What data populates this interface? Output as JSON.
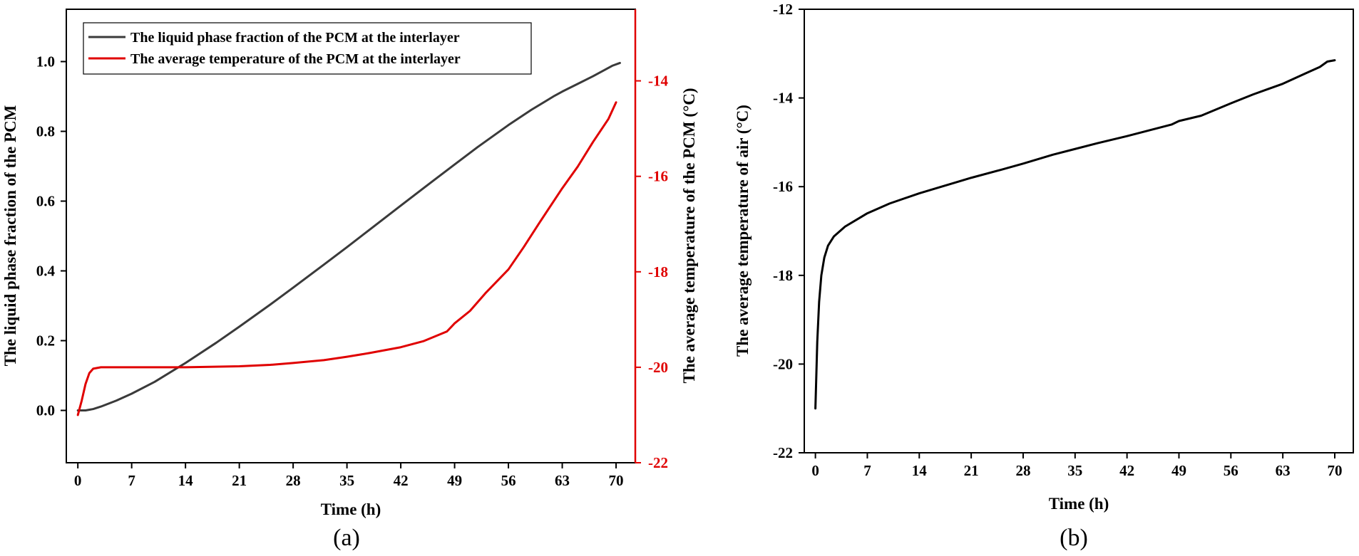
{
  "chart_data": [
    {
      "type": "line",
      "panel_label": "(a)",
      "xlabel": "Time (h)",
      "ylabel": "The liquid phase fraction of the PCM",
      "y2label": "The average temperature of the PCM (°C)",
      "xlim": [
        -1.5,
        72.5
      ],
      "ylim": [
        -0.15,
        1.15
      ],
      "y2lim": [
        -22,
        -12.5
      ],
      "x_ticks": [
        0,
        7,
        14,
        21,
        28,
        35,
        42,
        49,
        56,
        63,
        70
      ],
      "y_ticks": [
        0.0,
        0.2,
        0.4,
        0.6,
        0.8,
        1.0
      ],
      "y_tick_labels": [
        "0.0",
        "0.2",
        "0.4",
        "0.6",
        "0.8",
        "1.0"
      ],
      "y2_ticks": [
        -22,
        -20,
        -18,
        -16,
        -14
      ],
      "legend_position": "top-left",
      "series": [
        {
          "name": "The liquid phase fraction of the PCM at the interlayer",
          "axis": "left",
          "color": "#3a3a3a",
          "points": [
            [
              0,
              0.0
            ],
            [
              1,
              0.0
            ],
            [
              2,
              0.004
            ],
            [
              3,
              0.011
            ],
            [
              5,
              0.028
            ],
            [
              7,
              0.048
            ],
            [
              10,
              0.082
            ],
            [
              14,
              0.136
            ],
            [
              18,
              0.194
            ],
            [
              21,
              0.24
            ],
            [
              25,
              0.303
            ],
            [
              28,
              0.352
            ],
            [
              32,
              0.418
            ],
            [
              35,
              0.468
            ],
            [
              38,
              0.519
            ],
            [
              42,
              0.587
            ],
            [
              45,
              0.638
            ],
            [
              49,
              0.705
            ],
            [
              52,
              0.755
            ],
            [
              56,
              0.818
            ],
            [
              59,
              0.862
            ],
            [
              62,
              0.902
            ],
            [
              63,
              0.914
            ],
            [
              65,
              0.936
            ],
            [
              67,
              0.958
            ],
            [
              68.5,
              0.976
            ],
            [
              69.5,
              0.988
            ],
            [
              70.5,
              0.996
            ]
          ]
        },
        {
          "name": "The average temperature of the PCM at the interlayer",
          "axis": "right",
          "color": "#e00000",
          "points": [
            [
              0,
              -21.0
            ],
            [
              0.5,
              -20.7
            ],
            [
              1,
              -20.35
            ],
            [
              1.5,
              -20.12
            ],
            [
              2,
              -20.03
            ],
            [
              3,
              -20.0
            ],
            [
              7,
              -20.0
            ],
            [
              14,
              -20.0
            ],
            [
              21,
              -19.98
            ],
            [
              25,
              -19.95
            ],
            [
              28,
              -19.91
            ],
            [
              32,
              -19.85
            ],
            [
              35,
              -19.78
            ],
            [
              38,
              -19.7
            ],
            [
              42,
              -19.58
            ],
            [
              45,
              -19.45
            ],
            [
              48,
              -19.25
            ],
            [
              49,
              -19.08
            ],
            [
              51,
              -18.82
            ],
            [
              53,
              -18.45
            ],
            [
              56,
              -17.95
            ],
            [
              58,
              -17.48
            ],
            [
              60,
              -16.98
            ],
            [
              63,
              -16.25
            ],
            [
              65,
              -15.8
            ],
            [
              67,
              -15.28
            ],
            [
              69,
              -14.8
            ],
            [
              70,
              -14.45
            ]
          ]
        }
      ]
    },
    {
      "type": "line",
      "panel_label": "(b)",
      "xlabel": "Time (h)",
      "ylabel": "The average temperature of air (°C)",
      "xlim": [
        -1.5,
        72.5
      ],
      "ylim": [
        -22,
        -12
      ],
      "x_ticks": [
        0,
        7,
        14,
        21,
        28,
        35,
        42,
        49,
        56,
        63,
        70
      ],
      "y_ticks": [
        -22,
        -20,
        -18,
        -16,
        -14,
        -12
      ],
      "series": [
        {
          "name": "",
          "color": "#000000",
          "points": [
            [
              0,
              -21.0
            ],
            [
              0.1,
              -20.4
            ],
            [
              0.25,
              -19.5
            ],
            [
              0.5,
              -18.6
            ],
            [
              0.8,
              -18.0
            ],
            [
              1.2,
              -17.6
            ],
            [
              1.7,
              -17.33
            ],
            [
              2.5,
              -17.12
            ],
            [
              4,
              -16.9
            ],
            [
              6,
              -16.7
            ],
            [
              7,
              -16.6
            ],
            [
              10,
              -16.38
            ],
            [
              14,
              -16.15
            ],
            [
              17,
              -16.0
            ],
            [
              21,
              -15.8
            ],
            [
              25,
              -15.62
            ],
            [
              28,
              -15.48
            ],
            [
              32,
              -15.28
            ],
            [
              35,
              -15.15
            ],
            [
              38,
              -15.02
            ],
            [
              42,
              -14.86
            ],
            [
              45,
              -14.73
            ],
            [
              48,
              -14.6
            ],
            [
              49,
              -14.52
            ],
            [
              52,
              -14.4
            ],
            [
              56,
              -14.12
            ],
            [
              59,
              -13.92
            ],
            [
              63,
              -13.68
            ],
            [
              66,
              -13.45
            ],
            [
              68,
              -13.3
            ],
            [
              69,
              -13.18
            ],
            [
              70,
              -13.15
            ]
          ]
        }
      ]
    }
  ]
}
